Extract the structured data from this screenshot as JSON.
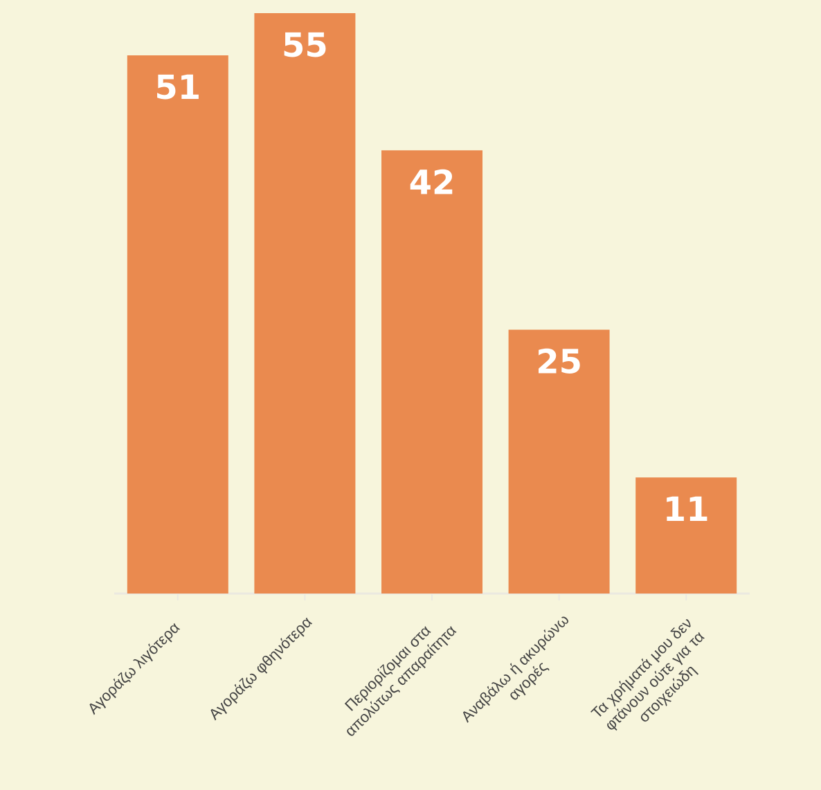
{
  "chart_data": {
    "type": "bar",
    "categories": [
      "Αγοράζω λιγότερα",
      "Αγοράζω φθηνότερα",
      "Περιορίζομαι στα απολύτως απαραίτητα",
      "Αναβάλω ή ακυρώνω αγορές",
      "Τα χρήματά μου δεν φτάνουν ούτε για τα στοιχειώδη"
    ],
    "values": [
      51,
      55,
      42,
      25,
      11
    ],
    "color": "#ea8a4f"
  }
}
